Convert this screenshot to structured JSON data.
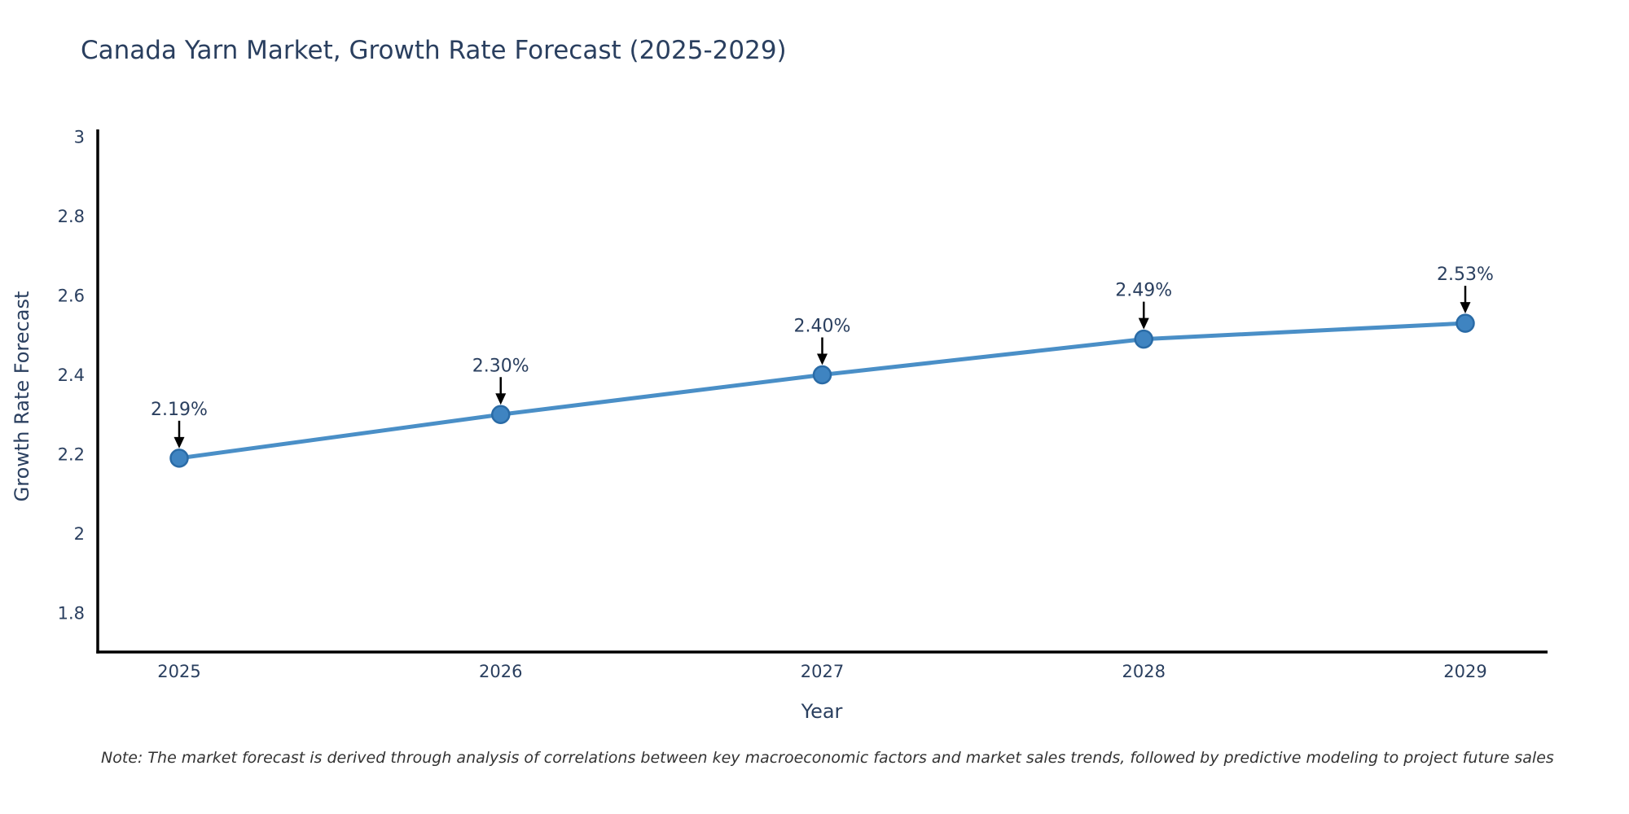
{
  "chart": {
    "title": "Canada Yarn Market, Growth Rate Forecast (2025-2029)",
    "xaxis_title": "Year",
    "yaxis_title": "Growth Rate Forecast"
  },
  "note": "Note: The market forecast is derived through analysis of correlations between key macroeconomic factors and market sales trends, followed by predictive modeling to project future sales",
  "chart_data": {
    "type": "line",
    "title": "Canada Yarn Market, Growth Rate Forecast (2025-2029)",
    "xlabel": "Year",
    "ylabel": "Growth Rate Forecast",
    "x": [
      2025,
      2026,
      2027,
      2028,
      2029
    ],
    "values": [
      2.19,
      2.3,
      2.4,
      2.49,
      2.53
    ],
    "point_labels": [
      "2.19%",
      "2.30%",
      "2.40%",
      "2.49%",
      "2.53%"
    ],
    "xticks": [
      "2025",
      "2026",
      "2027",
      "2028",
      "2029"
    ],
    "yticks": [
      1.8,
      2,
      2.2,
      2.4,
      2.6,
      2.8,
      3
    ],
    "ylim": [
      1.7,
      3.02
    ],
    "grid": false,
    "legend": "none",
    "annotation_style": "value-label-with-down-arrow",
    "colors": {
      "line": "#4a8fc7",
      "marker_fill": "#3f84c1",
      "marker_border": "#2a6ba6",
      "axis": "#000000",
      "tick_text": "#2a3f5f",
      "annotation_text": "#2a3f5f",
      "arrow": "#000000",
      "note_text": "#333333",
      "title_text": "#2a3f5f"
    }
  }
}
